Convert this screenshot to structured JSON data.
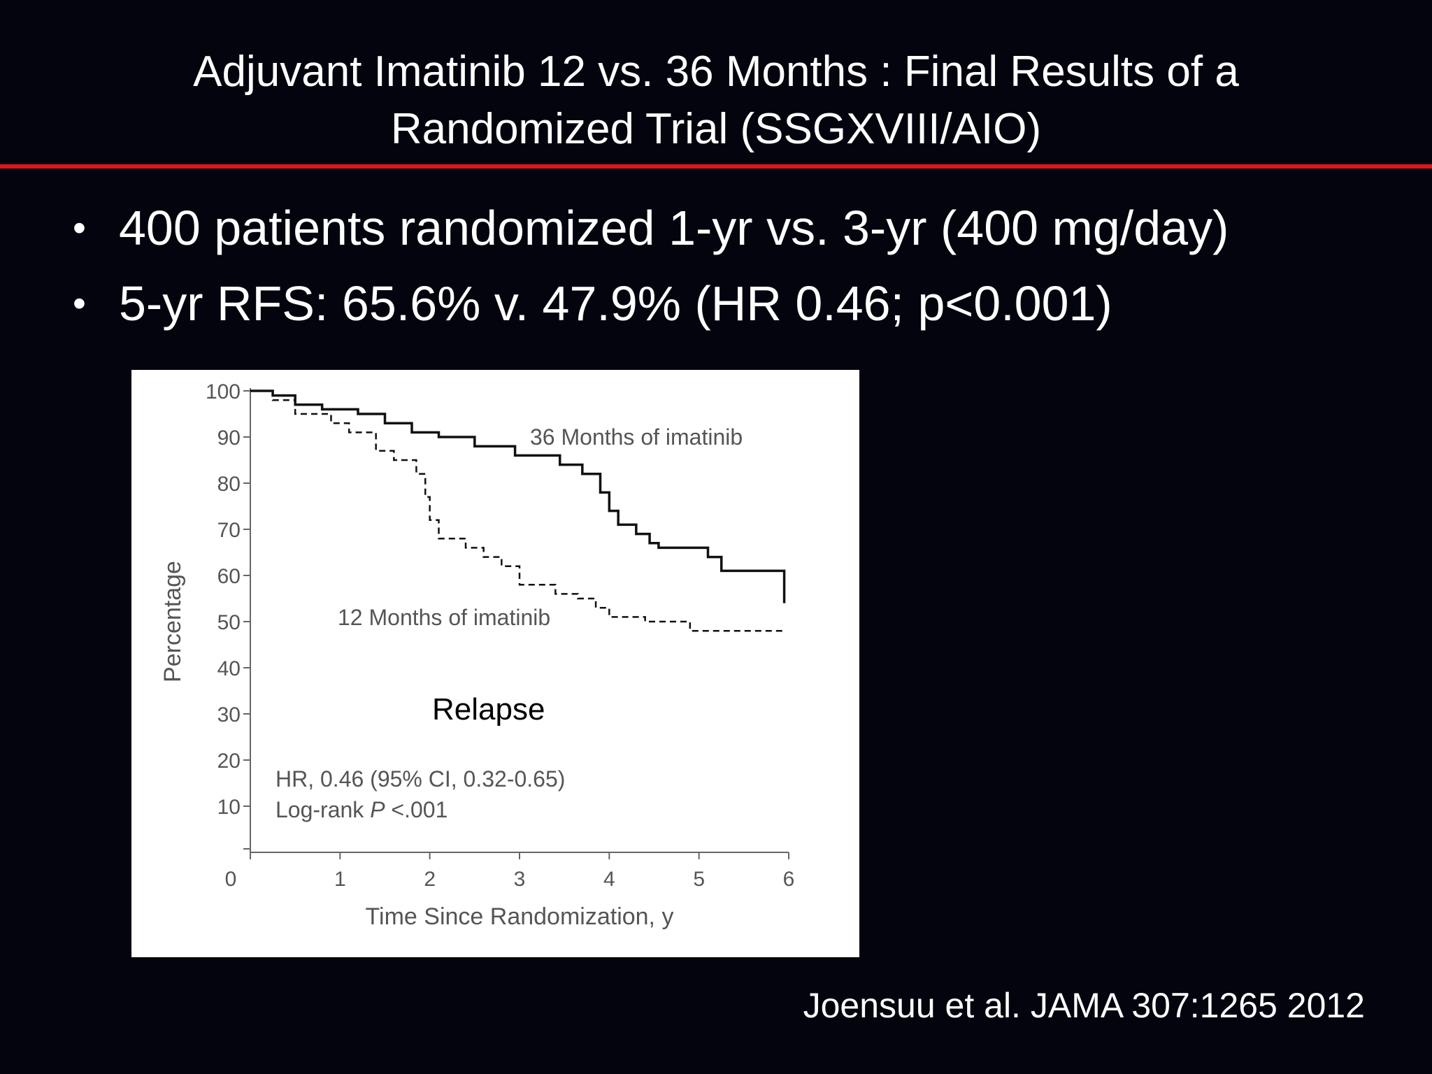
{
  "slide": {
    "title_lines": [
      "Adjuvant Imatinib 12 vs. 36 Months : Final Results of a",
      "Randomized Trial (SSGXVIII/AIO)"
    ],
    "bullets": [
      "400 patients randomized 1-yr vs. 3-yr (400 mg/day)",
      "5-yr RFS: 65.6% v. 47.9% (HR 0.46; p<0.001)"
    ],
    "citation": "Joensuu et al. JAMA 307:1265 2012",
    "colors": {
      "background": "#04040f",
      "rule": "#e0141c",
      "text": "#ffffff"
    }
  },
  "chart_data": {
    "type": "line",
    "subtype": "kaplan-meier step curve",
    "title": "",
    "xlabel": "Time Since Randomization, y",
    "ylabel": "Percentage",
    "xlim": [
      0,
      6
    ],
    "ylim": [
      0,
      100
    ],
    "x_ticks": [
      "0",
      "1",
      "2",
      "3",
      "4",
      "5",
      "6"
    ],
    "y_ticks": [
      "100",
      "90",
      "80",
      "70",
      "60",
      "50",
      "40",
      "30",
      "20",
      "10"
    ],
    "grid": false,
    "series": [
      {
        "name": "36 Months of imatinib",
        "line_style": "solid",
        "points": [
          [
            0,
            100
          ],
          [
            0.25,
            99
          ],
          [
            0.5,
            97
          ],
          [
            0.8,
            96
          ],
          [
            1.2,
            95
          ],
          [
            1.5,
            93
          ],
          [
            1.8,
            91
          ],
          [
            2.1,
            90
          ],
          [
            2.5,
            88
          ],
          [
            2.95,
            86
          ],
          [
            3.4,
            86
          ],
          [
            3.45,
            84
          ],
          [
            3.7,
            82
          ],
          [
            3.9,
            78
          ],
          [
            4.0,
            74
          ],
          [
            4.1,
            71
          ],
          [
            4.3,
            69
          ],
          [
            4.45,
            67
          ],
          [
            4.55,
            66
          ],
          [
            5.1,
            64
          ],
          [
            5.25,
            61
          ],
          [
            5.95,
            61
          ],
          [
            5.95,
            54
          ]
        ]
      },
      {
        "name": "12 Months of imatinib",
        "line_style": "dashed",
        "points": [
          [
            0,
            100
          ],
          [
            0.25,
            98
          ],
          [
            0.5,
            95
          ],
          [
            0.9,
            93
          ],
          [
            1.1,
            91
          ],
          [
            1.4,
            87
          ],
          [
            1.6,
            85
          ],
          [
            1.85,
            82
          ],
          [
            1.95,
            77
          ],
          [
            2.0,
            72
          ],
          [
            2.1,
            68
          ],
          [
            2.4,
            66
          ],
          [
            2.6,
            64
          ],
          [
            2.8,
            62
          ],
          [
            3.0,
            58
          ],
          [
            3.4,
            56
          ],
          [
            3.65,
            55
          ],
          [
            3.85,
            53
          ],
          [
            4.0,
            51
          ],
          [
            4.4,
            50
          ],
          [
            4.9,
            48
          ],
          [
            5.95,
            48
          ]
        ]
      }
    ],
    "annotations": [
      "Relapse",
      "HR, 0.46 (95% CI, 0.32-0.65)",
      "Log-rank",
      "P",
      "<.001"
    ]
  }
}
